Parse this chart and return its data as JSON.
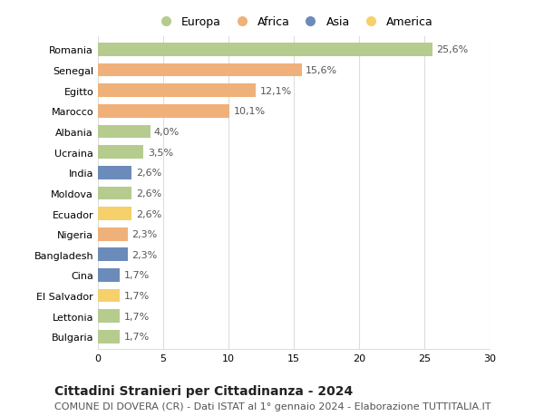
{
  "countries": [
    "Romania",
    "Senegal",
    "Egitto",
    "Marocco",
    "Albania",
    "Ucraina",
    "India",
    "Moldova",
    "Ecuador",
    "Nigeria",
    "Bangladesh",
    "Cina",
    "El Salvador",
    "Lettonia",
    "Bulgaria"
  ],
  "values": [
    25.6,
    15.6,
    12.1,
    10.1,
    4.0,
    3.5,
    2.6,
    2.6,
    2.6,
    2.3,
    2.3,
    1.7,
    1.7,
    1.7,
    1.7
  ],
  "labels": [
    "25,6%",
    "15,6%",
    "12,1%",
    "10,1%",
    "4,0%",
    "3,5%",
    "2,6%",
    "2,6%",
    "2,6%",
    "2,3%",
    "2,3%",
    "1,7%",
    "1,7%",
    "1,7%",
    "1,7%"
  ],
  "regions": [
    "Europa",
    "Africa",
    "Africa",
    "Africa",
    "Europa",
    "Europa",
    "Asia",
    "Europa",
    "America",
    "Africa",
    "Asia",
    "Asia",
    "America",
    "Europa",
    "Europa"
  ],
  "region_colors": {
    "Europa": "#b5cc8e",
    "Africa": "#f0b07a",
    "Asia": "#6b8cba",
    "America": "#f5d06b"
  },
  "legend_order": [
    "Europa",
    "Africa",
    "Asia",
    "America"
  ],
  "title": "Cittadini Stranieri per Cittadinanza - 2024",
  "subtitle": "COMUNE DI DOVERA (CR) - Dati ISTAT al 1° gennaio 2024 - Elaborazione TUTTITALIA.IT",
  "xlim": [
    0,
    30
  ],
  "xticks": [
    0,
    5,
    10,
    15,
    20,
    25,
    30
  ],
  "background_color": "#ffffff",
  "bar_height": 0.65,
  "grid_color": "#dddddd",
  "title_fontsize": 10,
  "subtitle_fontsize": 8,
  "tick_fontsize": 8,
  "label_fontsize": 8,
  "legend_fontsize": 9
}
